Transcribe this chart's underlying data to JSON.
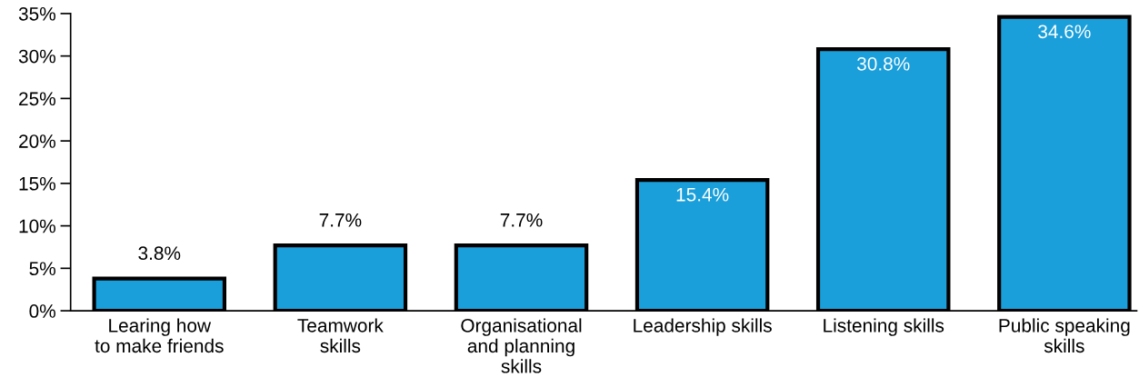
{
  "chart_data": {
    "type": "bar",
    "categories": [
      "Learing how\nto make friends",
      "Teamwork\nskills",
      "Organisational\nand planning\nskills",
      "Leadership skills",
      "Listening skills",
      "Public speaking\nskills"
    ],
    "values": [
      3.8,
      7.7,
      7.7,
      15.4,
      30.8,
      34.6
    ],
    "value_labels": [
      "3.8%",
      "7.7%",
      "7.7%",
      "15.4%",
      "30.8%",
      "34.6%"
    ],
    "color": "#1a9fdb",
    "ylim": [
      0,
      35
    ],
    "yticks": [
      {
        "value": 0,
        "label": "0%"
      },
      {
        "value": 5,
        "label": "5%"
      },
      {
        "value": 10,
        "label": "10%"
      },
      {
        "value": 15,
        "label": "15%"
      },
      {
        "value": 20,
        "label": "20%"
      },
      {
        "value": 25,
        "label": "25%"
      },
      {
        "value": 30,
        "label": "30%"
      },
      {
        "value": 35,
        "label": "35%"
      }
    ],
    "grid": false
  }
}
